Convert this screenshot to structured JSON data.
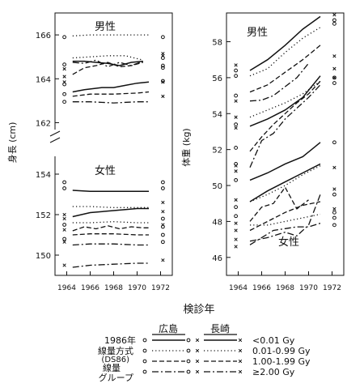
{
  "x_axis_title": "検診年",
  "chart_data": [
    {
      "panel": "height",
      "type": "line",
      "ylabel": "身長 (cm)",
      "broken_axis": true,
      "x_ticks": [
        "1964",
        "1966",
        "1968",
        "1970",
        "1972"
      ],
      "x_range": [
        1963,
        1973
      ],
      "y_ticks_upper": [
        "162",
        "164",
        "166"
      ],
      "y_ticks_lower": [
        "150",
        "152",
        "154"
      ],
      "ylim_upper": [
        161.5,
        167
      ],
      "ylim_lower": [
        149,
        155
      ],
      "group_labels": [
        "男性",
        "女性"
      ],
      "series": [
        {
          "group": "male",
          "city": "hiroshima",
          "dose": "<0.01",
          "x": [
            1964.5,
            1965.5,
            1967,
            1968,
            1969,
            1970,
            1971
          ],
          "y": [
            163.4,
            163.5,
            163.6,
            163.6,
            163.7,
            163.8,
            163.85
          ]
        },
        {
          "group": "male",
          "city": "hiroshima",
          "dose": "0.01-0.99",
          "x": [
            1964.5,
            1966,
            1967.5,
            1969,
            1970,
            1971
          ],
          "y": [
            165.95,
            166.0,
            166.0,
            166.0,
            166.0,
            166.0
          ]
        },
        {
          "group": "male",
          "city": "hiroshima",
          "dose": "1.00-1.99",
          "x": [
            1964.5,
            1966,
            1968,
            1970,
            1971
          ],
          "y": [
            163.2,
            163.3,
            163.3,
            163.35,
            163.4
          ]
        },
        {
          "group": "male",
          "city": "hiroshima",
          "dose": "≥2.00",
          "x": [
            1964.5,
            1966,
            1968,
            1970,
            1971
          ],
          "y": [
            162.95,
            162.95,
            162.9,
            162.95,
            162.95
          ]
        },
        {
          "group": "male",
          "city": "nagasaki",
          "dose": "<0.01",
          "x": [
            1964.5,
            1965.5,
            1966.5,
            1967.5,
            1968.5,
            1969.5,
            1970.5
          ],
          "y": [
            164.8,
            164.8,
            164.75,
            164.7,
            164.6,
            164.75,
            164.8
          ]
        },
        {
          "group": "male",
          "city": "nagasaki",
          "dose": "0.01-0.99",
          "x": [
            1964.5,
            1966,
            1967.5,
            1969,
            1970.5
          ],
          "y": [
            164.95,
            165.0,
            165.05,
            165.05,
            164.85
          ]
        },
        {
          "group": "male",
          "city": "nagasaki",
          "dose": "1.00-1.99",
          "x": [
            1964.5,
            1965.5,
            1966.5,
            1967.5,
            1968.5,
            1969.5,
            1970.5
          ],
          "y": [
            164.2,
            164.5,
            164.6,
            164.75,
            164.55,
            164.6,
            164.75
          ]
        },
        {
          "group": "male",
          "city": "nagasaki",
          "dose": "≥2.00",
          "x": [
            1964.5,
            1965.5,
            1966.5,
            1967.5,
            1968.5,
            1969.5,
            1970.5
          ],
          "y": [
            164.75,
            164.7,
            164.85,
            164.55,
            164.75,
            164.6,
            164.8
          ]
        },
        {
          "group": "female",
          "city": "hiroshima",
          "dose": "<0.01",
          "x": [
            1964.5,
            1966,
            1968,
            1970,
            1971
          ],
          "y": [
            153.2,
            153.15,
            153.15,
            153.15,
            153.15
          ]
        },
        {
          "group": "female",
          "city": "hiroshima",
          "dose": "0.01-0.99",
          "x": [
            1964.5,
            1966,
            1968,
            1970,
            1971
          ],
          "y": [
            152.4,
            152.4,
            152.35,
            152.35,
            152.35
          ]
        },
        {
          "group": "female",
          "city": "hiroshima",
          "dose": "1.00-1.99",
          "x": [
            1964.5,
            1966,
            1968,
            1970,
            1971
          ],
          "y": [
            151.0,
            151.05,
            151.05,
            151.0,
            151.0
          ]
        },
        {
          "group": "female",
          "city": "hiroshima",
          "dose": "≥2.00",
          "x": [
            1964.5,
            1966,
            1968,
            1970,
            1971
          ],
          "y": [
            150.5,
            150.55,
            150.55,
            150.5,
            150.5
          ]
        },
        {
          "group": "female",
          "city": "nagasaki",
          "dose": "<0.01",
          "x": [
            1964.5,
            1966,
            1968,
            1970,
            1971
          ],
          "y": [
            151.9,
            152.1,
            152.2,
            152.3,
            152.3
          ]
        },
        {
          "group": "female",
          "city": "nagasaki",
          "dose": "0.01-0.99",
          "x": [
            1964.5,
            1966,
            1968,
            1970,
            1971
          ],
          "y": [
            151.6,
            151.6,
            151.65,
            151.6,
            151.6
          ]
        },
        {
          "group": "female",
          "city": "nagasaki",
          "dose": "1.00-1.99",
          "x": [
            1964.5,
            1965.5,
            1966.5,
            1967.5,
            1968.5,
            1969.5,
            1970.5,
            1971
          ],
          "y": [
            151.2,
            151.4,
            151.3,
            151.45,
            151.3,
            151.4,
            151.35,
            151.35
          ]
        },
        {
          "group": "female",
          "city": "nagasaki",
          "dose": "≥2.00",
          "x": [
            1964.5,
            1966,
            1968,
            1970,
            1971
          ],
          "y": [
            149.4,
            149.5,
            149.55,
            149.6,
            149.6
          ]
        }
      ],
      "markers": [
        {
          "city": "hiroshima",
          "x": 1963.8,
          "y": [
            165.9,
            164.65,
            163.75,
            163.3,
            162.95
          ]
        },
        {
          "city": "nagasaki",
          "x": 1963.8,
          "y": [
            164.45,
            164.1,
            163.85
          ]
        },
        {
          "city": "hiroshima",
          "x": 1972.2,
          "y": [
            165.9,
            164.95,
            164.6,
            164.5,
            163.9
          ]
        },
        {
          "city": "nagasaki",
          "x": 1972.2,
          "y": [
            165.15,
            165.05,
            163.85,
            163.2
          ]
        },
        {
          "city": "hiroshima",
          "x": 1963.8,
          "y": [
            153.6,
            153.3,
            151.5,
            150.8
          ]
        },
        {
          "city": "nagasaki",
          "x": 1963.8,
          "y": [
            152.0,
            151.8,
            151.25,
            150.65,
            149.5
          ]
        },
        {
          "city": "hiroshima",
          "x": 1972.2,
          "y": [
            153.6,
            153.3,
            151.8,
            151.4,
            151.0,
            150.65
          ]
        },
        {
          "city": "nagasaki",
          "x": 1972.2,
          "y": [
            152.6,
            152.15,
            151.5,
            149.75
          ]
        }
      ]
    },
    {
      "panel": "weight",
      "type": "line",
      "ylabel": "体重 (kg)",
      "x_ticks": [
        "1964",
        "1966",
        "1968",
        "1970",
        "1972"
      ],
      "x_range": [
        1963,
        1973
      ],
      "y_ticks": [
        "46",
        "48",
        "50",
        "52",
        "54",
        "56",
        "58"
      ],
      "ylim": [
        45,
        59.6
      ],
      "group_labels": [
        "男性",
        "女性"
      ],
      "series": [
        {
          "group": "male",
          "city": "hiroshima",
          "dose": "<0.01",
          "x": [
            1965,
            1966.5,
            1968,
            1969.5,
            1971
          ],
          "y": [
            53.3,
            53.7,
            54.2,
            54.9,
            56.1
          ]
        },
        {
          "group": "male",
          "city": "hiroshima",
          "dose": "0.01-0.99",
          "x": [
            1965,
            1966.5,
            1968,
            1969.5,
            1971
          ],
          "y": [
            53.8,
            54.2,
            54.6,
            55.1,
            55.8
          ]
        },
        {
          "group": "male",
          "city": "hiroshima",
          "dose": "1.00-1.99",
          "x": [
            1965,
            1966,
            1967,
            1968,
            1969,
            1970,
            1971
          ],
          "y": [
            51.9,
            52.7,
            53.4,
            54.0,
            54.6,
            55.1,
            55.8
          ]
        },
        {
          "group": "male",
          "city": "hiroshima",
          "dose": "≥2.00",
          "x": [
            1965,
            1966,
            1967,
            1968,
            1969,
            1970,
            1971
          ],
          "y": [
            51.0,
            52.5,
            52.9,
            53.7,
            54.3,
            54.9,
            55.6
          ]
        },
        {
          "group": "male",
          "city": "nagasaki",
          "dose": "<0.01",
          "x": [
            1965,
            1966.5,
            1968,
            1969.5,
            1971
          ],
          "y": [
            56.4,
            57.0,
            57.8,
            58.7,
            59.4
          ]
        },
        {
          "group": "male",
          "city": "nagasaki",
          "dose": "0.01-0.99",
          "x": [
            1965,
            1966.5,
            1968,
            1969.5,
            1971
          ],
          "y": [
            56.1,
            56.5,
            57.4,
            58.2,
            58.8
          ]
        },
        {
          "group": "male",
          "city": "nagasaki",
          "dose": "1.00-1.99",
          "x": [
            1965,
            1966.5,
            1968,
            1969.5,
            1971
          ],
          "y": [
            55.2,
            55.6,
            56.3,
            57.0,
            57.8
          ]
        },
        {
          "group": "male",
          "city": "nagasaki",
          "dose": "≥2.00",
          "x": [
            1965,
            1966,
            1967,
            1968,
            1969,
            1970
          ],
          "y": [
            54.7,
            54.75,
            55.0,
            55.5,
            56.0,
            56.8
          ]
        },
        {
          "group": "female",
          "city": "hiroshima",
          "dose": "<0.01",
          "x": [
            1965,
            1966.5,
            1968,
            1969.5,
            1971
          ],
          "y": [
            50.3,
            50.7,
            51.2,
            51.6,
            52.4
          ]
        },
        {
          "group": "female",
          "city": "hiroshima",
          "dose": "0.01-0.99",
          "x": [
            1965,
            1966.5,
            1968,
            1969.5,
            1971
          ],
          "y": [
            49.1,
            49.5,
            50.0,
            50.6,
            51.1
          ]
        },
        {
          "group": "female",
          "city": "hiroshima",
          "dose": "1.00-1.99",
          "x": [
            1965,
            1966.5,
            1968,
            1969.5,
            1971
          ],
          "y": [
            47.5,
            48.0,
            48.5,
            48.9,
            49.1
          ]
        },
        {
          "group": "female",
          "city": "hiroshima",
          "dose": "≥2.00",
          "x": [
            1965,
            1966.5,
            1968,
            1969,
            1970,
            1971
          ],
          "y": [
            46.9,
            47.1,
            47.4,
            47.2,
            47.8,
            49.5
          ]
        },
        {
          "group": "female",
          "city": "nagasaki",
          "dose": "<0.01",
          "x": [
            1965,
            1966.5,
            1968,
            1969.5,
            1971
          ],
          "y": [
            49.1,
            49.7,
            50.2,
            50.7,
            51.2
          ]
        },
        {
          "group": "female",
          "city": "nagasaki",
          "dose": "0.01-0.99",
          "x": [
            1965,
            1966.5,
            1968,
            1969.5,
            1971
          ],
          "y": [
            47.8,
            47.8,
            48.0,
            48.2,
            48.4
          ]
        },
        {
          "group": "female",
          "city": "nagasaki",
          "dose": "1.00-1.99",
          "x": [
            1965,
            1966,
            1967,
            1968,
            1969,
            1970
          ],
          "y": [
            48.0,
            48.8,
            49.0,
            49.9,
            48.7,
            49.2
          ]
        },
        {
          "group": "female",
          "city": "nagasaki",
          "dose": "≥2.00",
          "x": [
            1965,
            1966,
            1967,
            1968,
            1969,
            1970,
            1971
          ],
          "y": [
            46.7,
            47.1,
            47.5,
            47.6,
            47.7,
            47.7,
            47.9
          ]
        }
      ],
      "markers": [
        {
          "city": "hiroshima",
          "x": 1963.8,
          "y": [
            56.4,
            56.1,
            55.0,
            53.4,
            52.1,
            51.2,
            50.3,
            48.8,
            48.3
          ]
        },
        {
          "city": "nagasaki",
          "x": 1963.8,
          "y": [
            56.7,
            54.7,
            53.8,
            53.2,
            51.1,
            50.8,
            49.2,
            47.9,
            47.5,
            47.0,
            46.6
          ]
        },
        {
          "city": "hiroshima",
          "x": 1972.2,
          "y": [
            59.2,
            59.0,
            56.0,
            55.7,
            52.4,
            49.5,
            48.5,
            48.2,
            47.8
          ]
        },
        {
          "city": "nagasaki",
          "x": 1972.2,
          "y": [
            59.5,
            57.2,
            56.5,
            56.0,
            51.0,
            49.8,
            48.7
          ]
        }
      ]
    }
  ],
  "legend": {
    "header_city1": "広島",
    "header_city2": "長崎",
    "left_labels": [
      "1986年",
      "線量方式",
      "(DS86)",
      "線量",
      "グループ"
    ],
    "rows": [
      {
        "dose": "<0.01 Gy",
        "style": "solid"
      },
      {
        "dose": "0.01-0.99 Gy",
        "style": "dotted"
      },
      {
        "dose": "1.00-1.99 Gy",
        "style": "dashed"
      },
      {
        "dose": "≥2.00 Gy",
        "style": "dashdot"
      }
    ],
    "marker_hiroshima": "o",
    "marker_nagasaki": "x"
  }
}
